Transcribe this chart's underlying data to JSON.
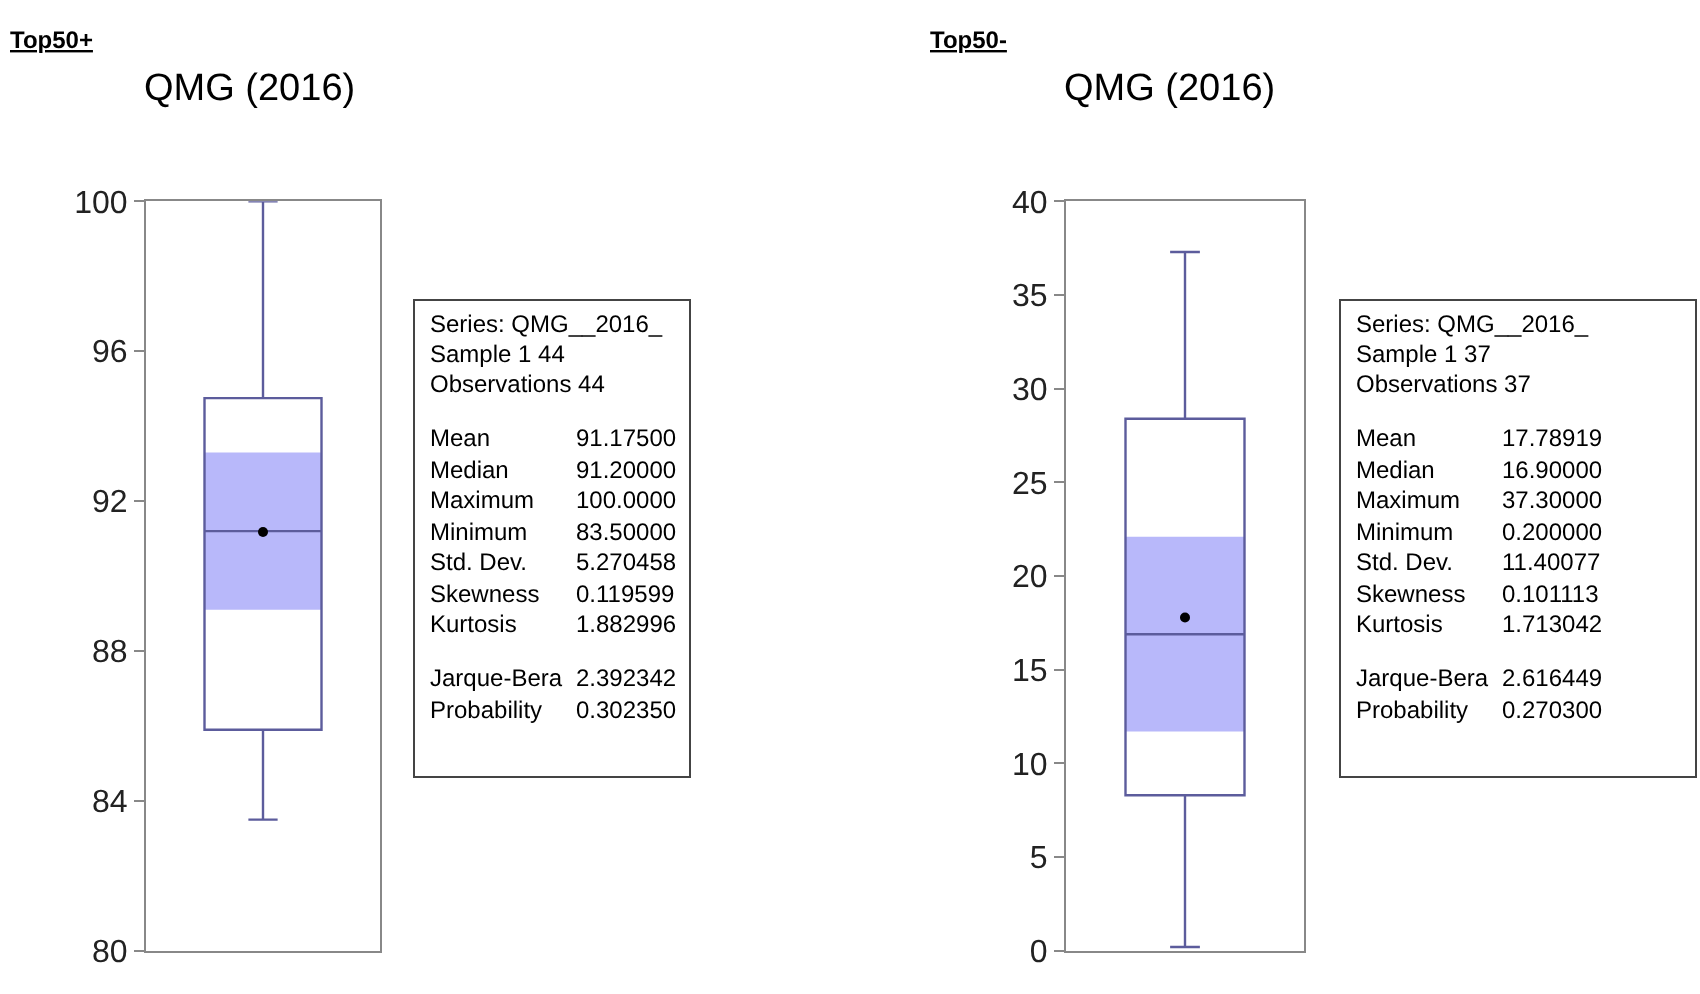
{
  "chart_data": [
    {
      "type": "box",
      "title": "Top50+",
      "subtitle": "QMG (2016)",
      "categories": [
        null
      ],
      "color": "#5c5c9c",
      "ylim": [
        80,
        100
      ],
      "yticks": [
        80,
        84,
        88,
        92,
        96,
        100
      ],
      "grid": false,
      "boxes": [
        {
          "low": 83.5,
          "q1": 85.9,
          "median": 91.2,
          "q3": 94.75,
          "high": 100,
          "mean": 91.175
        }
      ],
      "bands": [
        {
          "axis": "y",
          "from": 89.1,
          "to": 93.3,
          "color": "#b8b8fa"
        }
      ]
    },
    {
      "type": "other",
      "annotations": [
        "Series: QMG__2016_",
        "Sample 1 44",
        "Observations 44",
        "Mean\t91.17500",
        "Median\t91.20000",
        "Maximum\t100.0000",
        "Minimum\t83.50000",
        "Std. Dev.\t5.270458",
        "Skewness\t0.119599",
        "Kurtosis\t1.882996",
        "Jarque-Bera\t2.392342",
        "Probability\t0.302350"
      ]
    },
    {
      "type": "box",
      "title": "Top50-",
      "subtitle": "QMG (2016)",
      "categories": [
        null
      ],
      "color": "#5c5c9c",
      "ylim": [
        0,
        40
      ],
      "yticks": [
        0,
        5,
        10,
        15,
        20,
        25,
        30,
        35,
        40
      ],
      "grid": false,
      "boxes": [
        {
          "low": 0.2,
          "q1": 8.3,
          "median": 16.9,
          "q3": 28.4,
          "high": 37.3,
          "mean": 17.79
        }
      ],
      "bands": [
        {
          "axis": "y",
          "from": 11.7,
          "to": 22.1,
          "color": "#b8b8fa"
        }
      ]
    },
    {
      "type": "other",
      "annotations": [
        "Series: QMG__2016_",
        "Sample 1 37",
        "Observations 37",
        "Mean\t17.78919",
        "Median\t16.90000",
        "Maximum\t37.30000",
        "Minimum\t0.200000",
        "Std. Dev.\t11.40077",
        "Skewness\t0.101113",
        "Kurtosis\t1.713042",
        "Jarque-Bera\t2.616449",
        "Probability\t0.270300"
      ]
    }
  ]
}
